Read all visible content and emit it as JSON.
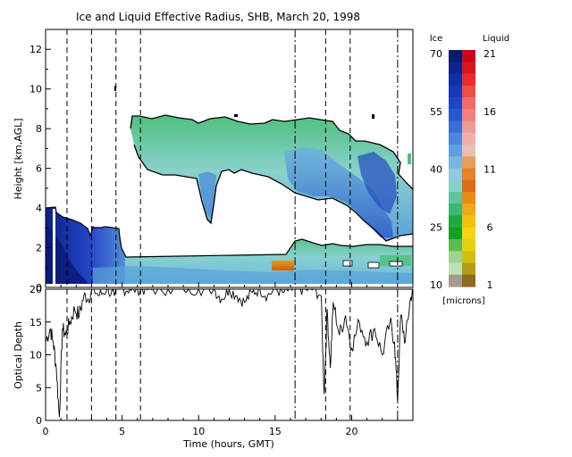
{
  "chart_data": [
    {
      "type": "heatmap",
      "title": "Ice and Liquid Effective Radius, SHB, March 20, 1998",
      "xlabel": "Time (hours, GMT)",
      "ylabel": "Height [km,AGL]",
      "xlim": [
        0,
        24
      ],
      "ylim": [
        0,
        13
      ],
      "x_ticks": [
        0,
        5,
        10,
        15,
        20
      ],
      "y_ticks": [
        0,
        2,
        4,
        6,
        8,
        10,
        12
      ],
      "colorbar": {
        "units": "[microns]",
        "ice": {
          "label": "Ice",
          "range": [
            10,
            70
          ],
          "ticks": [
            70,
            55,
            40,
            25,
            10
          ]
        },
        "liquid": {
          "label": "Liquid",
          "range": [
            1,
            21
          ],
          "ticks": [
            21,
            16,
            11,
            6,
            1
          ]
        }
      },
      "vertical_markers": [
        {
          "x": 1.4,
          "style": "dashed"
        },
        {
          "x": 3.0,
          "style": "dashed"
        },
        {
          "x": 4.6,
          "style": "dashed"
        },
        {
          "x": 6.2,
          "style": "dashed"
        },
        {
          "x": 16.3,
          "style": "dashdot"
        },
        {
          "x": 18.3,
          "style": "dashed"
        },
        {
          "x": 19.9,
          "style": "dashed"
        },
        {
          "x": 23.0,
          "style": "dashdot"
        }
      ],
      "layers": [
        {
          "phase": "ice",
          "x": [
            0.0,
            6.2
          ],
          "y": [
            0.2,
            4.1
          ],
          "re_range": [
            25,
            70
          ]
        },
        {
          "phase": "ice",
          "x": [
            6.2,
            24.0
          ],
          "y": [
            0.2,
            1.9
          ],
          "re_range": [
            30,
            50
          ]
        },
        {
          "phase": "ice",
          "x": [
            5.6,
            24.0
          ],
          "y": [
            2.5,
            8.5
          ],
          "re_range": [
            30,
            60
          ]
        },
        {
          "phase": "liquid",
          "x": [
            14.7,
            16.2
          ],
          "y": [
            1.0,
            1.6
          ],
          "re_range": [
            7,
            9
          ]
        },
        {
          "phase": "liquid",
          "x": [
            21.0,
            24.0
          ],
          "y": [
            1.0,
            2.0
          ],
          "re_range": [
            2,
            6
          ]
        }
      ]
    },
    {
      "type": "line",
      "ylabel": "Optical Depth",
      "xlabel": "Time (hours, GMT)",
      "xlim": [
        0,
        24
      ],
      "ylim": [
        0,
        20
      ],
      "y_ticks": [
        0,
        5,
        10,
        15,
        20
      ],
      "x": [
        0.0,
        0.3,
        0.5,
        0.7,
        0.9,
        1.1,
        1.3,
        1.6,
        1.9,
        2.2,
        2.5,
        2.8,
        3.1,
        3.5,
        4.0,
        4.5,
        5.0,
        5.5,
        6.0,
        6.5,
        7.0,
        8.0,
        9.0,
        10.0,
        11.0,
        11.5,
        12.0,
        12.5,
        13.0,
        13.5,
        14.0,
        14.5,
        15.0,
        15.5,
        16.0,
        16.3,
        16.6,
        17.0,
        17.5,
        18.0,
        18.2,
        18.4,
        18.6,
        18.8,
        19.2,
        19.6,
        20.0,
        20.5,
        21.0,
        21.5,
        22.0,
        22.5,
        22.8,
        23.0,
        23.2,
        23.5,
        23.8,
        24.0
      ],
      "values": [
        12,
        14,
        12,
        8,
        0.5,
        14,
        13,
        15,
        17,
        16,
        19,
        18.5,
        20,
        19,
        20,
        19,
        20,
        20,
        20,
        20,
        20,
        20,
        20,
        20,
        20,
        18.5,
        20,
        19,
        18,
        19.5,
        20,
        19,
        20,
        19.5,
        20,
        20,
        20,
        20,
        20,
        19,
        4,
        17,
        8,
        18,
        13,
        16,
        11,
        15,
        12,
        14,
        10,
        15,
        12,
        3,
        16,
        12,
        18,
        20
      ]
    }
  ]
}
